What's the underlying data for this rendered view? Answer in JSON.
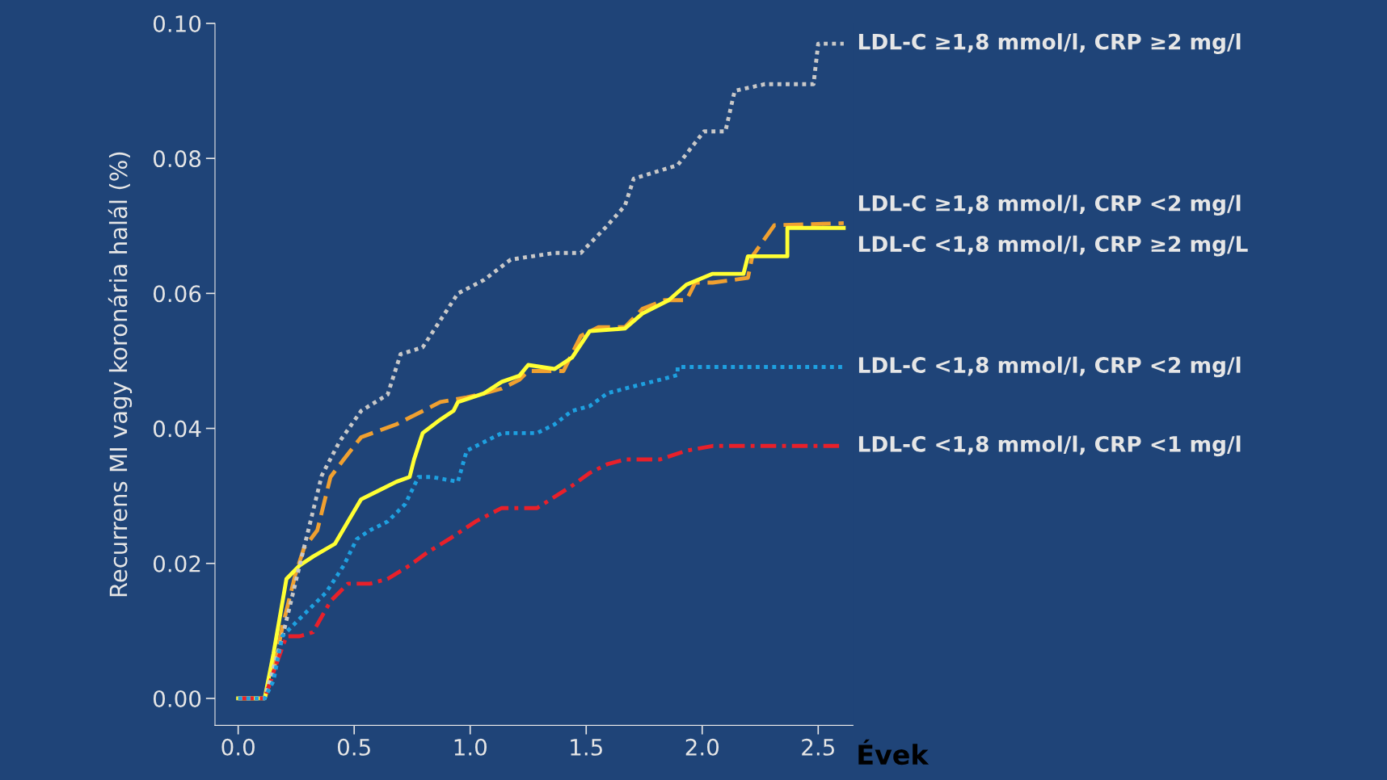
{
  "chart_data": {
    "type": "line",
    "xlabel": "Évek",
    "ylabel": "Recurrens MI vagy koronária halál (%)",
    "xlim": [
      -0.1,
      2.65
    ],
    "ylim": [
      -0.004,
      0.1
    ],
    "xticks": [
      {
        "value": 0,
        "label": "0.0"
      },
      0.5,
      {
        "value": 1,
        "label": "1.0"
      },
      1.5,
      {
        "value": 2,
        "label": "2.0"
      },
      2.5
    ],
    "yticks": [
      {
        "value": 0,
        "label": "0.00"
      },
      0.02,
      0.04,
      0.06,
      0.08,
      {
        "value": 0.1,
        "label": "0.10"
      }
    ],
    "grid": false,
    "marker": "none",
    "series": [
      {
        "name": "LDL-C ≥1,8 mmol/l, CRP ≥2 mg/l",
        "color": "#c8c8c8",
        "line_style": "dotted",
        "x": [
          0,
          0.114,
          0.19,
          0.265,
          0.36,
          0.436,
          0.53,
          0.644,
          0.7,
          0.795,
          0.871,
          0.947,
          1.06,
          1.174,
          1.364,
          1.477,
          1.59,
          1.667,
          1.705,
          1.894,
          2.008,
          2.1,
          2.14,
          2.27,
          2.48,
          2.5,
          2.61
        ],
        "values": [
          0,
          0,
          0.009,
          0.0197,
          0.033,
          0.038,
          0.0426,
          0.045,
          0.051,
          0.052,
          0.056,
          0.06,
          0.062,
          0.065,
          0.066,
          0.066,
          0.07,
          0.073,
          0.077,
          0.079,
          0.084,
          0.084,
          0.09,
          0.091,
          0.091,
          0.097,
          0.097
        ]
      },
      {
        "name": "LDL-C ≥1,8 mmol/l, CRP <2 mg/l",
        "color": "#f0a030",
        "line_style": "dashed",
        "x": [
          0,
          0.114,
          0.152,
          0.19,
          0.246,
          0.284,
          0.341,
          0.398,
          0.455,
          0.53,
          0.682,
          0.871,
          0.985,
          1.061,
          1.136,
          1.212,
          1.25,
          1.402,
          1.477,
          1.553,
          1.667,
          1.742,
          1.837,
          1.932,
          1.97,
          2.045,
          2.197,
          2.216,
          2.311,
          2.61
        ],
        "values": [
          0,
          0,
          0.0039,
          0.0105,
          0.0183,
          0.0223,
          0.0249,
          0.0328,
          0.0354,
          0.0387,
          0.0406,
          0.0439,
          0.0446,
          0.0452,
          0.0459,
          0.0472,
          0.0485,
          0.0485,
          0.0537,
          0.055,
          0.055,
          0.0577,
          0.059,
          0.059,
          0.0616,
          0.0616,
          0.0623,
          0.0655,
          0.0701,
          0.0704
        ]
      },
      {
        "name": "LDL-C <1,8 mmol/l, CRP ≥2 mg/L",
        "color": "#ffff33",
        "line_style": "solid",
        "x": [
          0,
          0.114,
          0.152,
          0.208,
          0.265,
          0.322,
          0.417,
          0.473,
          0.53,
          0.606,
          0.682,
          0.739,
          0.758,
          0.795,
          0.871,
          0.928,
          0.947,
          1.06,
          1.136,
          1.212,
          1.25,
          1.364,
          1.439,
          1.515,
          1.667,
          1.742,
          1.856,
          1.932,
          2.045,
          2.178,
          2.197,
          2.367,
          2.367,
          2.61
        ],
        "values": [
          0,
          0,
          0.0066,
          0.0177,
          0.0197,
          0.021,
          0.0229,
          0.0262,
          0.0295,
          0.0308,
          0.0321,
          0.0328,
          0.0354,
          0.0393,
          0.0413,
          0.0426,
          0.0439,
          0.0452,
          0.0469,
          0.0478,
          0.0494,
          0.0488,
          0.0505,
          0.0544,
          0.0548,
          0.057,
          0.059,
          0.0613,
          0.0629,
          0.0629,
          0.0655,
          0.0655,
          0.0697,
          0.0697
        ]
      },
      {
        "name": "LDL-C <1,8 mmol/l, CRP <2 mg/l",
        "color": "#1ea0e0",
        "line_style": "dotted",
        "x": [
          0,
          0.114,
          0.152,
          0.19,
          0.265,
          0.379,
          0.455,
          0.511,
          0.568,
          0.644,
          0.72,
          0.777,
          0.834,
          0.947,
          0.985,
          1.061,
          1.136,
          1.288,
          1.364,
          1.439,
          1.515,
          1.591,
          1.667,
          1.818,
          1.894,
          1.894,
          1.97,
          2.61
        ],
        "values": [
          0,
          0,
          0.0026,
          0.0092,
          0.0118,
          0.0157,
          0.0197,
          0.0236,
          0.0249,
          0.0262,
          0.0288,
          0.0328,
          0.0328,
          0.0321,
          0.0367,
          0.038,
          0.0393,
          0.0393,
          0.0406,
          0.0426,
          0.0433,
          0.0452,
          0.0459,
          0.0472,
          0.0479,
          0.0491,
          0.0491,
          0.0491
        ]
      },
      {
        "name": "LDL-C <1,8 mmol/l, CRP <1 mg/l",
        "color": "#e8202a",
        "line_style": "dashdot",
        "x": [
          0,
          0.114,
          0.152,
          0.208,
          0.265,
          0.322,
          0.398,
          0.473,
          0.568,
          0.644,
          0.739,
          0.814,
          0.909,
          1.023,
          1.136,
          1.288,
          1.439,
          1.515,
          1.591,
          1.667,
          1.818,
          1.932,
          2.045,
          2.61
        ],
        "values": [
          0,
          0,
          0.0039,
          0.0092,
          0.0092,
          0.0098,
          0.0144,
          0.017,
          0.017,
          0.0177,
          0.0197,
          0.0216,
          0.0236,
          0.0262,
          0.0282,
          0.0282,
          0.0315,
          0.0334,
          0.0347,
          0.0354,
          0.0354,
          0.0367,
          0.0374,
          0.0374
        ]
      }
    ]
  }
}
